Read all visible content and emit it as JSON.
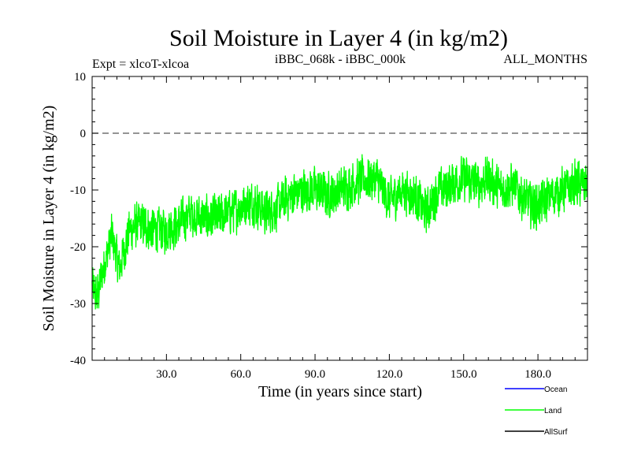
{
  "chart_data": {
    "type": "line",
    "title": "Soil Moisture in Layer 4 (in kg/m2)",
    "subtitle_left": "Expt = xlcoT-xlcoa",
    "subtitle_center": "iBBC_068k - iBBC_000k",
    "subtitle_right": "ALL_MONTHS",
    "xlabel": "Time (in years since start)",
    "ylabel": "Soil Moisture in Layer 4 (in kg/m2)",
    "xlim": [
      0,
      200
    ],
    "ylim": [
      -40,
      10
    ],
    "x_ticks": [
      30,
      60,
      90,
      120,
      150,
      180
    ],
    "x_tick_labels": [
      "30.0",
      "60.0",
      "90.0",
      "120.0",
      "150.0",
      "180.0"
    ],
    "y_ticks": [
      10,
      0,
      -10,
      -20,
      -30,
      -40
    ],
    "y_tick_labels": [
      "10",
      "0",
      "-10",
      "-20",
      "-30",
      "-40"
    ],
    "reference_line": {
      "y": 0,
      "style": "dashed"
    },
    "series": [
      {
        "name": "Land",
        "color": "#00ff00",
        "points_per_year": 12,
        "anchor_x": [
          0,
          2,
          5,
          8,
          11,
          15,
          20,
          25,
          30,
          35,
          40,
          45,
          50,
          55,
          60,
          65,
          70,
          75,
          80,
          85,
          90,
          95,
          100,
          105,
          110,
          115,
          120,
          125,
          130,
          135,
          140,
          145,
          150,
          155,
          160,
          165,
          170,
          175,
          180,
          185,
          190,
          195,
          200
        ],
        "anchor_y": [
          -27,
          -29,
          -23,
          -18,
          -24,
          -17,
          -16,
          -17,
          -17,
          -16,
          -14,
          -15,
          -15,
          -14,
          -13,
          -12,
          -14,
          -13,
          -11,
          -10,
          -10,
          -11,
          -10,
          -9,
          -8,
          -8,
          -12,
          -10,
          -11,
          -14,
          -10,
          -9,
          -8,
          -9,
          -8,
          -10,
          -9,
          -12,
          -13,
          -11,
          -10,
          -9,
          -9
        ],
        "noise_amplitude": 3.2
      }
    ],
    "legend": [
      {
        "name": "Ocean",
        "color": "#0000ff"
      },
      {
        "name": "Land",
        "color": "#00ff00"
      },
      {
        "name": "AllSurf",
        "color": "#000000"
      }
    ]
  }
}
